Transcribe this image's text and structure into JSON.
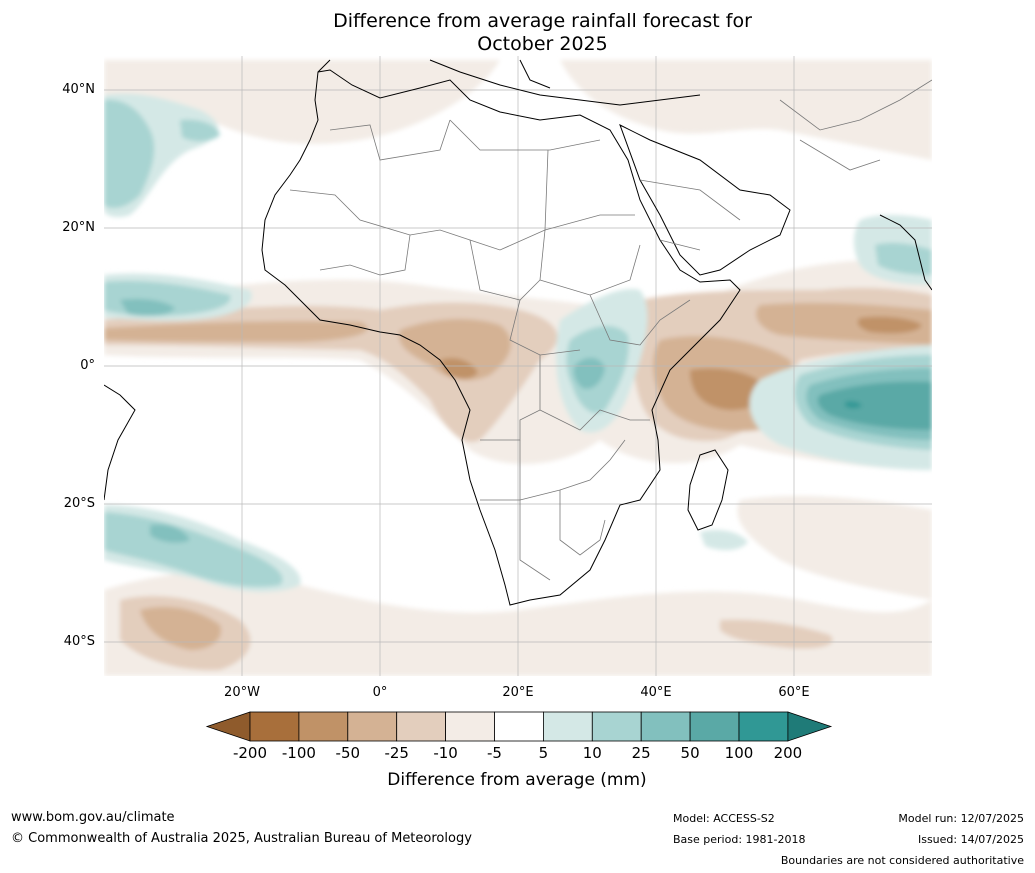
{
  "title": {
    "line1": "Difference from average rainfall forecast for",
    "line2": "October 2025"
  },
  "axes": {
    "lat_ticks": [
      "40°N",
      "20°N",
      "0°",
      "20°S",
      "40°S"
    ],
    "lon_ticks": [
      "20°W",
      "0°",
      "20°E",
      "40°E",
      "60°E"
    ]
  },
  "colorbar": {
    "labels": [
      "-200",
      "-100",
      "-50",
      "-25",
      "-10",
      "-5",
      "5",
      "10",
      "25",
      "50",
      "100",
      "200"
    ],
    "colors": [
      "#a86f3b",
      "#c09267",
      "#d4b294",
      "#e3cebd",
      "#f3ece6",
      "#ffffff",
      "#d4e8e6",
      "#a8d4d2",
      "#82c0be",
      "#5aa9a6",
      "#309895"
    ],
    "end_low": "#8f5b2c",
    "end_high": "#1f7b78",
    "title": "Difference from average (mm)"
  },
  "footer": {
    "website": "www.bom.gov.au/climate",
    "copyright": "© Commonwealth of Australia 2025, Australian Bureau of Meteorology",
    "model": "Model: ACCESS-S2",
    "base_period": "Base period: 1981-2018",
    "model_run": "Model run: 12/07/2025",
    "issued": "Issued: 14/07/2025",
    "disclaimer": "Boundaries are not considered authoritative"
  }
}
